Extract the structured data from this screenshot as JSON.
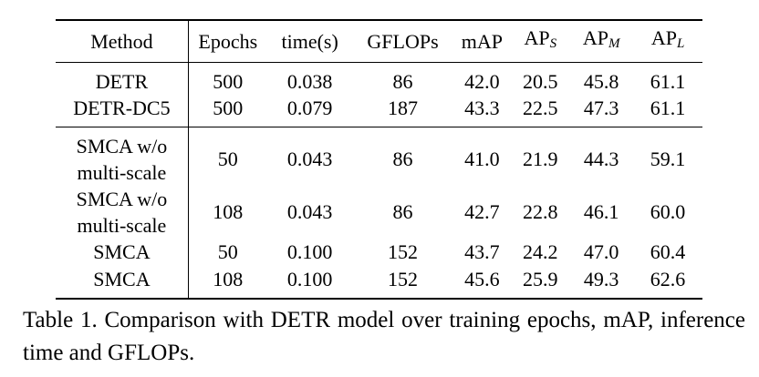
{
  "table": {
    "headers": {
      "method": "Method",
      "epochs": "Epochs",
      "time": "time(s)",
      "gflops": "GFLOPs",
      "map": "mAP",
      "ap_s": {
        "base": "AP",
        "sub": "S"
      },
      "ap_m": {
        "base": "AP",
        "sub": "M"
      },
      "ap_l": {
        "base": "AP",
        "sub": "L"
      }
    },
    "group1": [
      {
        "method_l1": "DETR",
        "method_l2": "",
        "epochs": "500",
        "time": "0.038",
        "gflops": "86",
        "map": "42.0",
        "ap_s": "20.5",
        "ap_m": "45.8",
        "ap_l": "61.1"
      },
      {
        "method_l1": "DETR-DC5",
        "method_l2": "",
        "epochs": "500",
        "time": "0.079",
        "gflops": "187",
        "map": "43.3",
        "ap_s": "22.5",
        "ap_m": "47.3",
        "ap_l": "61.1"
      }
    ],
    "group2": [
      {
        "method_l1": "SMCA w/o",
        "method_l2": "multi-scale",
        "epochs": "50",
        "time": "0.043",
        "gflops": "86",
        "map": "41.0",
        "ap_s": "21.9",
        "ap_m": "44.3",
        "ap_l": "59.1"
      },
      {
        "method_l1": "SMCA w/o",
        "method_l2": "multi-scale",
        "epochs": "108",
        "time": "0.043",
        "gflops": "86",
        "map": "42.7",
        "ap_s": "22.8",
        "ap_m": "46.1",
        "ap_l": "60.0"
      },
      {
        "method_l1": "SMCA",
        "method_l2": "",
        "epochs": "50",
        "time": "0.100",
        "gflops": "152",
        "map": "43.7",
        "ap_s": "24.2",
        "ap_m": "47.0",
        "ap_l": "60.4"
      },
      {
        "method_l1": "SMCA",
        "method_l2": "",
        "epochs": "108",
        "time": "0.100",
        "gflops": "152",
        "map": "45.6",
        "ap_s": "25.9",
        "ap_m": "49.3",
        "ap_l": "62.6"
      }
    ]
  },
  "caption": "Table 1. Comparison with DETR model over training epochs, mAP, inference time and GFLOPs."
}
